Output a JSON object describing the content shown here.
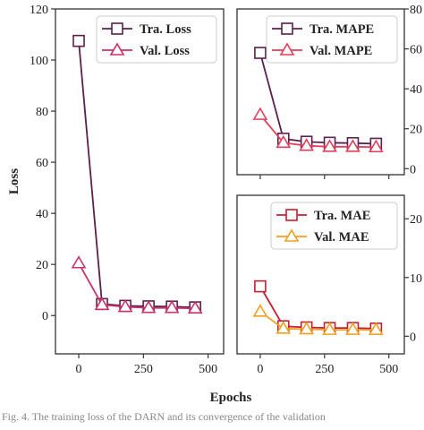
{
  "colors": {
    "train": "#5c1f4e",
    "val_loss": "#c8336b",
    "val_mape": "#e0405a",
    "train_mae": "#c81e32",
    "val_mae": "#f0a020",
    "frame": "#333333",
    "marker_fill": "#ffffff"
  },
  "xlabel": "Epochs",
  "caption": "Fig. 4.  The training loss of the DARN and its convergence of the validation",
  "chart_data": [
    {
      "id": "loss",
      "type": "line",
      "xlabel": "",
      "ylabel": "Loss",
      "xlim": [
        -90,
        560
      ],
      "ylim": [
        -15,
        120
      ],
      "x_ticks": [
        0,
        250,
        500
      ],
      "y_ticks": [
        0,
        20,
        40,
        60,
        80,
        100,
        120
      ],
      "y_axis_side": "left",
      "x_tick_labels_shown": true,
      "legend_position": "top-right",
      "x": [
        0,
        90,
        180,
        270,
        360,
        450
      ],
      "series": [
        {
          "name": "Tra. Loss",
          "marker": "square",
          "color_key": "train",
          "values": [
            107.5,
            4.5,
            3.8,
            3.6,
            3.5,
            3.2
          ]
        },
        {
          "name": "Val. Loss",
          "marker": "triangle",
          "color_key": "val_loss",
          "values": [
            20.5,
            4.2,
            3.4,
            3.0,
            3.0,
            2.8
          ]
        }
      ]
    },
    {
      "id": "mape",
      "type": "line",
      "ylabel": "",
      "xlim": [
        -90,
        560
      ],
      "ylim": [
        -3,
        80
      ],
      "y_ticks": [
        0,
        20,
        40,
        60,
        80
      ],
      "y_axis_side": "right",
      "x_tick_labels_shown": false,
      "legend_position": "top-right",
      "x": [
        0,
        90,
        180,
        270,
        360,
        450
      ],
      "series": [
        {
          "name": "Tra. MAPE",
          "marker": "square",
          "color_key": "train",
          "values": [
            58,
            15,
            13.5,
            13,
            12.8,
            12.5
          ]
        },
        {
          "name": "Val. MAPE",
          "marker": "triangle",
          "color_key": "val_mape",
          "values": [
            27,
            13,
            11.5,
            11,
            11,
            10.8
          ]
        }
      ]
    },
    {
      "id": "mae",
      "type": "line",
      "ylabel": "",
      "xlim": [
        -90,
        560
      ],
      "ylim": [
        -3,
        24
      ],
      "y_ticks": [
        0,
        10,
        20
      ],
      "y_axis_side": "right",
      "x_tick_labels_shown": true,
      "x_ticks": [
        0,
        250,
        500
      ],
      "legend_position": "top-right",
      "x": [
        0,
        90,
        180,
        270,
        360,
        450
      ],
      "series": [
        {
          "name": "Tra. MAE",
          "marker": "square",
          "color_key": "train_mae",
          "values": [
            8.5,
            1.7,
            1.5,
            1.4,
            1.4,
            1.3
          ]
        },
        {
          "name": "Val. MAE",
          "marker": "triangle",
          "color_key": "val_mae",
          "values": [
            4.2,
            1.3,
            1.2,
            1.1,
            1.1,
            1.1
          ]
        }
      ]
    }
  ]
}
